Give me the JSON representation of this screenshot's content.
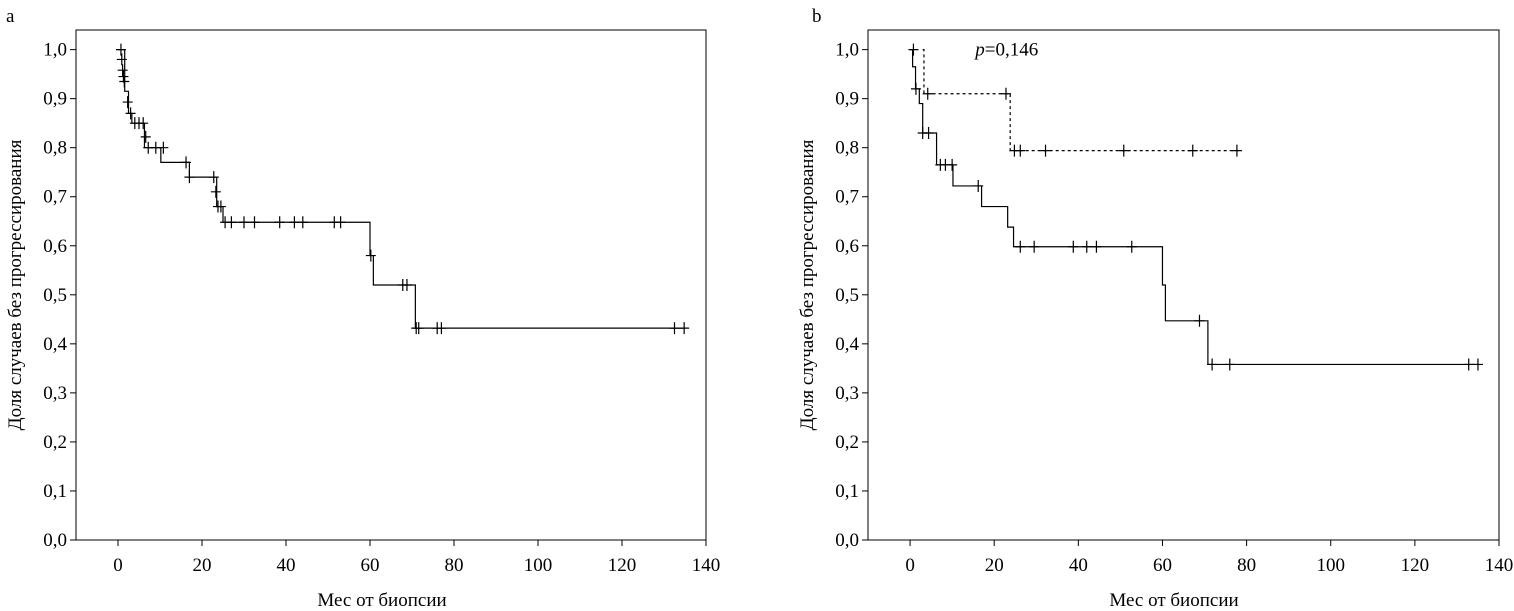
{
  "chart_data": [
    {
      "panel_label": "a",
      "type": "line",
      "xlabel": "Мес от биопсии",
      "ylabel": "Доля случаев без прогрессирования",
      "xlim": [
        -10,
        140
      ],
      "ylim": [
        0,
        1.04
      ],
      "xticks": [
        0,
        20,
        40,
        60,
        80,
        100,
        120,
        140
      ],
      "xtick_labels": [
        "0",
        "20",
        "40",
        "60",
        "80",
        "100",
        "120",
        "140"
      ],
      "yticks": [
        0,
        0.1,
        0.2,
        0.3,
        0.4,
        0.5,
        0.6,
        0.7,
        0.8,
        0.9,
        1.0
      ],
      "ytick_labels": [
        "0,0",
        "0,1",
        "0,2",
        "0,3",
        "0,4",
        "0,5",
        "0,6",
        "0,7",
        "0,8",
        "0,9",
        "1,0"
      ],
      "grid": false,
      "annotation": "",
      "series": [
        {
          "style": "solid",
          "step_x": [
            0,
            1.6,
            2.5,
            3.3,
            6.3,
            10.2,
            17,
            23.5,
            25,
            60,
            60.8,
            70.8,
            135
          ],
          "step_y": [
            1.0,
            0.915,
            0.87,
            0.85,
            0.8,
            0.77,
            0.74,
            0.68,
            0.648,
            0.58,
            0.52,
            0.432,
            0.432
          ],
          "censor_x": [
            0.7,
            0.9,
            1.1,
            1.3,
            1.5,
            2.3,
            3.0,
            4.0,
            5.0,
            6.0,
            6.6,
            7.2,
            9.0,
            10.8,
            16.2,
            17.0,
            22.8,
            23.3,
            23.8,
            24.5,
            25.5,
            27.0,
            30.0,
            32.5,
            38.5,
            42.0,
            44.0,
            51.5,
            53.0,
            60.2,
            67.8,
            68.8,
            71.0,
            71.6,
            76.0,
            77.0,
            132.5,
            134.8
          ],
          "censor_y": [
            1.0,
            0.98,
            0.958,
            0.945,
            0.935,
            0.893,
            0.87,
            0.85,
            0.85,
            0.85,
            0.822,
            0.8,
            0.8,
            0.8,
            0.77,
            0.74,
            0.74,
            0.71,
            0.68,
            0.68,
            0.648,
            0.648,
            0.648,
            0.648,
            0.648,
            0.648,
            0.648,
            0.648,
            0.648,
            0.58,
            0.52,
            0.52,
            0.432,
            0.432,
            0.432,
            0.432,
            0.432,
            0.432
          ]
        }
      ]
    },
    {
      "panel_label": "b",
      "type": "line",
      "xlabel": "Мес от биопсии",
      "ylabel": "Доля случаев без прогрессирования",
      "xlim": [
        -10,
        140
      ],
      "ylim": [
        0,
        1.04
      ],
      "xticks": [
        0,
        20,
        40,
        60,
        80,
        100,
        120,
        140
      ],
      "xtick_labels": [
        "0",
        "20",
        "40",
        "60",
        "80",
        "100",
        "120",
        "140"
      ],
      "yticks": [
        0,
        0.1,
        0.2,
        0.3,
        0.4,
        0.5,
        0.6,
        0.7,
        0.8,
        0.9,
        1.0
      ],
      "ytick_labels": [
        "0,0",
        "0,1",
        "0,2",
        "0,3",
        "0,4",
        "0,5",
        "0,6",
        "0,7",
        "0,8",
        "0,9",
        "1,0"
      ],
      "grid": false,
      "annotation": "p=0,146",
      "series": [
        {
          "style": "dashed",
          "step_x": [
            3,
            3.3,
            23.8,
            78
          ],
          "step_y": [
            1.0,
            0.91,
            0.794,
            0.794
          ],
          "censor_x": [
            4.2,
            22.8,
            24.8,
            26.2,
            32.2,
            50.8,
            67.2,
            77.7
          ],
          "censor_y": [
            0.91,
            0.91,
            0.794,
            0.794,
            0.794,
            0.794,
            0.794,
            0.794
          ]
        },
        {
          "style": "solid",
          "step_x": [
            0,
            0.6,
            1.3,
            2.2,
            3.0,
            6.3,
            10.2,
            17,
            23.2,
            24.6,
            60,
            60.7,
            70.8,
            135
          ],
          "step_y": [
            1.0,
            0.965,
            0.92,
            0.89,
            0.83,
            0.765,
            0.722,
            0.68,
            0.638,
            0.598,
            0.52,
            0.447,
            0.358,
            0.358
          ],
          "censor_x": [
            0.8,
            1.4,
            3.0,
            4.4,
            7.2,
            8.4,
            10.0,
            16.2,
            26.2,
            29.5,
            38.8,
            42.0,
            44.3,
            52.7,
            68.8,
            71.8,
            76.0,
            132.8,
            135.0
          ],
          "censor_y": [
            1.0,
            0.92,
            0.83,
            0.83,
            0.765,
            0.765,
            0.765,
            0.722,
            0.598,
            0.598,
            0.598,
            0.598,
            0.598,
            0.598,
            0.447,
            0.358,
            0.358,
            0.358,
            0.358
          ]
        }
      ]
    }
  ]
}
